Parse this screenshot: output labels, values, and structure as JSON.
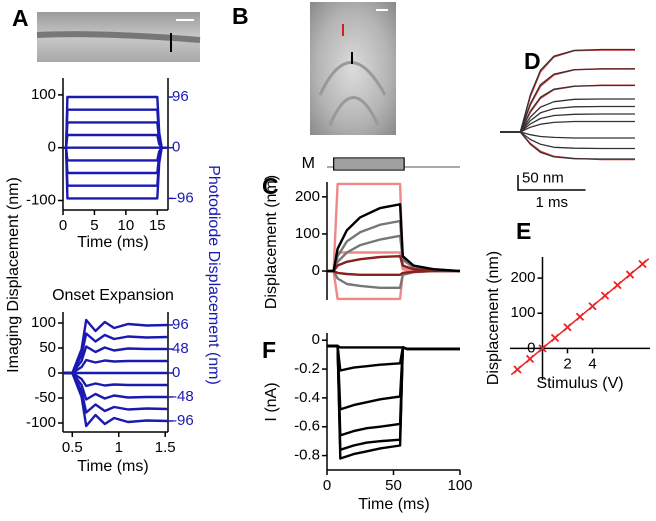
{
  "panel_labels": [
    "A",
    "B",
    "C",
    "D",
    "E",
    "F"
  ],
  "chart_data": [
    {
      "type": "line",
      "color": "#1a1ab0",
      "y2_color": "#1a1ab0",
      "xlabel": "Time (ms)",
      "ylabel": "Imaging Displacement (nm)",
      "y2label": "Photodiode Displacement (nm)",
      "xlim": [
        0,
        16.7
      ],
      "xticks": [
        0,
        5,
        10,
        15
      ],
      "ylim": [
        -118,
        132
      ],
      "yticks": [
        -100,
        0,
        100
      ],
      "y2lim": [
        -118,
        132
      ],
      "y2ticks": [
        -96,
        0,
        96
      ],
      "x": [
        0,
        0.5,
        0.7,
        15,
        15.3,
        15.7,
        16.7
      ],
      "series": [
        {
          "values": [
            0,
            0,
            96,
            96,
            29,
            0,
            0
          ]
        },
        {
          "values": [
            0,
            0,
            72,
            72,
            22,
            0,
            0
          ]
        },
        {
          "values": [
            0,
            0,
            48,
            48,
            14,
            0,
            0
          ]
        },
        {
          "values": [
            0,
            0,
            24,
            24,
            7,
            0,
            0
          ]
        },
        {
          "values": [
            0,
            0,
            0,
            0,
            0,
            0,
            0
          ]
        },
        {
          "values": [
            0,
            0,
            -24,
            -24,
            -7,
            0,
            0
          ]
        },
        {
          "values": [
            0,
            0,
            -48,
            -48,
            -14,
            0,
            0
          ]
        },
        {
          "values": [
            0,
            0,
            -72,
            -72,
            -22,
            0,
            0
          ]
        },
        {
          "values": [
            0,
            0,
            -96,
            -96,
            -29,
            0,
            0
          ]
        }
      ]
    },
    {
      "type": "line",
      "color": "#1a1ab0",
      "y2_color": "#1a1ab0",
      "title": "Onset Expansion",
      "xlabel": "Time (ms)",
      "xlim": [
        0.4,
        1.53
      ],
      "xticks": [
        0.5,
        1,
        1.5
      ],
      "ylim": [
        -118,
        122
      ],
      "yticks": [
        -100,
        -50,
        0,
        50,
        100
      ],
      "y2lim": [
        -118,
        122
      ],
      "y2ticks": [
        -96,
        -48,
        0,
        48,
        96
      ],
      "x": [
        0.4,
        0.5,
        0.6,
        0.65,
        0.75,
        0.85,
        0.95,
        1.1,
        1.3,
        1.53
      ],
      "series": [
        {
          "values": [
            0,
            0,
            48,
            106,
            84,
            102,
            90,
            98,
            95,
            96
          ]
        },
        {
          "values": [
            0,
            0,
            36,
            79,
            63,
            76,
            68,
            73,
            71,
            72
          ]
        },
        {
          "values": [
            0,
            0,
            24,
            53,
            42,
            51,
            45,
            49,
            48,
            48
          ]
        },
        {
          "values": [
            0,
            0,
            12,
            26,
            21,
            25,
            23,
            24,
            24,
            24
          ]
        },
        {
          "values": [
            0,
            0,
            0,
            0,
            0,
            0,
            0,
            0,
            0,
            0
          ]
        },
        {
          "values": [
            0,
            0,
            -12,
            -26,
            -21,
            -25,
            -23,
            -24,
            -24,
            -24
          ]
        },
        {
          "values": [
            0,
            0,
            -24,
            -53,
            -42,
            -51,
            -45,
            -49,
            -48,
            -48
          ]
        },
        {
          "values": [
            0,
            0,
            -36,
            -79,
            -63,
            -76,
            -68,
            -73,
            -71,
            -72
          ]
        },
        {
          "values": [
            0,
            0,
            -48,
            -106,
            -84,
            -102,
            -90,
            -98,
            -95,
            -96
          ]
        }
      ]
    },
    {
      "type": "line",
      "ylabel": "Displacement (nm)",
      "xlim": [
        0,
        100
      ],
      "ylim": [
        -78,
        240
      ],
      "yticks": [
        0,
        100,
        200
      ],
      "stimulus": {
        "label": "M",
        "start": 5,
        "end": 58
      },
      "x": [
        0,
        5,
        8,
        15,
        25,
        40,
        55,
        57,
        65,
        80,
        100
      ],
      "series": [
        {
          "color": "#f08888",
          "values": [
            0,
            0,
            235,
            235,
            235,
            235,
            235,
            10,
            3,
            0,
            0
          ]
        },
        {
          "color": "#f08888",
          "values": [
            0,
            0,
            50,
            50,
            50,
            50,
            50,
            5,
            0,
            0,
            0
          ]
        },
        {
          "color": "#f08888",
          "values": [
            0,
            0,
            -75,
            -75,
            -75,
            -75,
            -75,
            -5,
            0,
            0,
            0
          ]
        },
        {
          "color": "#777777",
          "values": [
            0,
            0,
            40,
            80,
            105,
            125,
            135,
            35,
            12,
            5,
            0
          ]
        },
        {
          "color": "#777777",
          "values": [
            0,
            0,
            25,
            50,
            70,
            85,
            95,
            30,
            10,
            4,
            0
          ]
        },
        {
          "color": "#777777",
          "values": [
            0,
            0,
            -20,
            -35,
            -40,
            -45,
            -45,
            -10,
            -3,
            0,
            0
          ]
        },
        {
          "color": "#8b2020",
          "values": [
            0,
            0,
            15,
            25,
            32,
            38,
            40,
            15,
            5,
            2,
            0
          ]
        },
        {
          "color": "#8b2020",
          "values": [
            0,
            0,
            -5,
            -8,
            -10,
            -10,
            -10,
            -5,
            -2,
            0,
            0
          ]
        },
        {
          "color": "#000000",
          "values": [
            0,
            0,
            60,
            110,
            145,
            170,
            180,
            40,
            15,
            5,
            0
          ]
        }
      ]
    },
    {
      "type": "line",
      "color": "#000000",
      "xlabel": "Time (ms)",
      "ylabel": "I (nA)",
      "xlim": [
        0,
        100
      ],
      "xticks": [
        0,
        50,
        100
      ],
      "ylim": [
        -0.9,
        0.05
      ],
      "yticks": [
        -0.8,
        -0.6,
        -0.4,
        -0.2,
        0
      ],
      "x": [
        0,
        8,
        10,
        20,
        30,
        40,
        55,
        57,
        60,
        80,
        100
      ],
      "series": [
        {
          "values": [
            -0.04,
            -0.04,
            -0.05,
            -0.05,
            -0.05,
            -0.05,
            -0.05,
            -0.05,
            -0.06,
            -0.06,
            -0.06
          ]
        },
        {
          "values": [
            -0.04,
            -0.04,
            -0.21,
            -0.19,
            -0.18,
            -0.17,
            -0.16,
            -0.05,
            -0.06,
            -0.06,
            -0.06
          ]
        },
        {
          "values": [
            -0.04,
            -0.04,
            -0.48,
            -0.45,
            -0.43,
            -0.41,
            -0.39,
            -0.05,
            -0.06,
            -0.06,
            -0.06
          ]
        },
        {
          "values": [
            -0.04,
            -0.04,
            -0.66,
            -0.63,
            -0.61,
            -0.6,
            -0.58,
            -0.05,
            -0.06,
            -0.06,
            -0.06
          ]
        },
        {
          "values": [
            -0.04,
            -0.04,
            -0.76,
            -0.73,
            -0.71,
            -0.7,
            -0.69,
            -0.05,
            -0.06,
            -0.06,
            -0.06
          ]
        },
        {
          "values": [
            -0.04,
            -0.04,
            -0.82,
            -0.79,
            -0.77,
            -0.75,
            -0.73,
            -0.05,
            -0.06,
            -0.06,
            -0.06
          ]
        }
      ]
    },
    {
      "type": "line",
      "xlim": [
        0,
        2
      ],
      "ylim": [
        -110,
        300
      ],
      "scalebar": {
        "x": 1,
        "x_label": "1 ms",
        "y": 50,
        "y_label": "50 nm"
      },
      "x": [
        0,
        0.3,
        0.45,
        0.6,
        0.8,
        1.1,
        1.5,
        2.0
      ],
      "series": [
        {
          "color": "#e03030",
          "values": [
            0,
            0,
            118,
            200,
            250,
            271,
            273,
            273
          ]
        },
        {
          "color": "#e03030",
          "values": [
            0,
            0,
            90,
            152,
            190,
            207,
            211,
            211
          ]
        },
        {
          "color": "#e03030",
          "values": [
            0,
            0,
            66,
            112,
            141,
            152,
            156,
            156
          ]
        },
        {
          "color": "#e03030",
          "values": [
            0,
            0,
            -38,
            -64,
            -81,
            -88,
            -92,
            -92
          ]
        },
        {
          "color": "#333333",
          "values": [
            0,
            0,
            124,
            206,
            253,
            272,
            275,
            275
          ]
        },
        {
          "color": "#333333",
          "values": [
            0,
            0,
            95,
            158,
            193,
            208,
            210,
            210
          ]
        },
        {
          "color": "#333333",
          "values": [
            0,
            0,
            70,
            116,
            143,
            153,
            155,
            155
          ]
        },
        {
          "color": "#333333",
          "values": [
            0,
            0,
            50,
            83,
            101,
            109,
            110,
            110
          ]
        },
        {
          "color": "#333333",
          "values": [
            0,
            0,
            38,
            64,
            78,
            84,
            85,
            85
          ]
        },
        {
          "color": "#333333",
          "values": [
            0,
            0,
            27,
            45,
            55,
            59,
            60,
            60
          ]
        },
        {
          "color": "#333333",
          "values": [
            0,
            0,
            16,
            26,
            32,
            35,
            35,
            35
          ]
        },
        {
          "color": "#333333",
          "values": [
            0,
            0,
            -9,
            -15,
            -18,
            -20,
            -20,
            -20
          ]
        },
        {
          "color": "#333333",
          "values": [
            0,
            0,
            -25,
            -41,
            -51,
            -54,
            -55,
            -55
          ]
        },
        {
          "color": "#333333",
          "values": [
            0,
            0,
            -41,
            -68,
            -83,
            -89,
            -90,
            -90
          ]
        }
      ]
    },
    {
      "type": "scatter",
      "xlabel": "Stimulus (V)",
      "ylabel": "Displacement (nm)",
      "xlim": [
        -2.6,
        8.6
      ],
      "xticks": [
        2,
        4
      ],
      "ylim": [
        -90,
        260
      ],
      "yticks": [
        0,
        100,
        200
      ],
      "series": [
        {
          "color": "#ee2222",
          "x": [
            -2,
            -1,
            0,
            1,
            2,
            3,
            4,
            5,
            6,
            7,
            8
          ],
          "values": [
            -60,
            -30,
            0,
            30,
            60,
            90,
            120,
            150,
            180,
            210,
            240
          ]
        }
      ],
      "fit": {
        "color": "#ee2222",
        "x": [
          -2.5,
          8.5
        ],
        "values": [
          -75,
          255
        ]
      }
    }
  ]
}
